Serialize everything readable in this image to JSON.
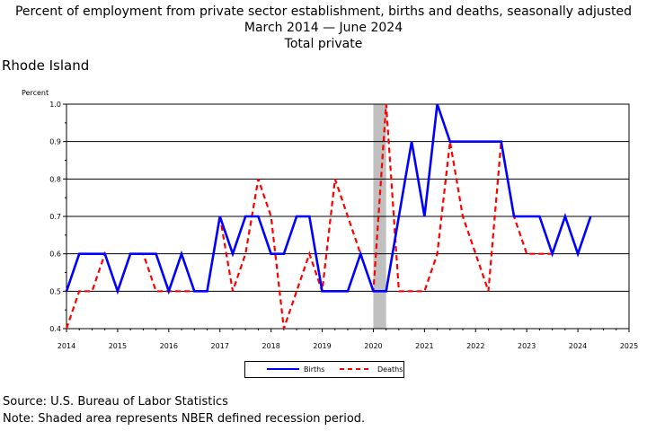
{
  "header": {
    "title": "Percent of employment from private sector establishment, births and deaths, seasonally adjusted",
    "period_start": "March 2014",
    "period_end": "June 2024",
    "subtitle": "Total private",
    "region": "Rhode Island"
  },
  "footer": {
    "source": "Source: U.S. Bureau of Labor Statistics",
    "note": "Note: Shaded area represents NBER defined recession period."
  },
  "chart_data": {
    "type": "line",
    "ylabel": "Percent",
    "ylim": [
      0.4,
      1.0
    ],
    "yticks": [
      "0.4",
      "0.5",
      "0.6",
      "0.7",
      "0.8",
      "0.9",
      "1.0"
    ],
    "xlim": [
      2014,
      2025
    ],
    "xticks": [
      "2014",
      "2015",
      "2016",
      "2017",
      "2018",
      "2019",
      "2020",
      "2021",
      "2022",
      "2023",
      "2024",
      "2025"
    ],
    "grid": "horizontal",
    "recession": [
      2020.0,
      2020.25
    ],
    "recession_color": "#c0c0c0",
    "x_start": 2014.0,
    "x_step": 0.25,
    "series": [
      {
        "name": "Births",
        "color": "#0000ff",
        "dash": "solid",
        "values": [
          0.5,
          0.6,
          0.6,
          0.6,
          0.5,
          0.6,
          0.6,
          0.6,
          0.5,
          0.6,
          0.5,
          0.5,
          0.7,
          0.6,
          0.7,
          0.7,
          0.6,
          0.6,
          0.7,
          0.7,
          0.5,
          0.5,
          0.5,
          0.6,
          0.5,
          0.5,
          0.7,
          0.9,
          0.7,
          1.0,
          0.9,
          0.9,
          0.9,
          0.9,
          0.9,
          0.7,
          0.7,
          0.7,
          0.6,
          0.7,
          0.6,
          0.7
        ]
      },
      {
        "name": "Deaths",
        "color": "#ff0000",
        "dash": "dashed",
        "values": [
          0.4,
          0.5,
          0.5,
          0.6,
          0.5,
          0.6,
          0.6,
          0.5,
          0.5,
          0.5,
          0.5,
          0.5,
          0.7,
          0.5,
          0.6,
          0.8,
          0.7,
          0.4,
          0.5,
          0.6,
          0.5,
          0.8,
          0.7,
          0.6,
          0.5,
          1.0,
          0.5,
          0.5,
          0.5,
          0.6,
          0.9,
          0.7,
          0.6,
          0.5,
          0.9,
          0.7,
          0.6,
          0.6,
          0.6
        ]
      }
    ]
  }
}
